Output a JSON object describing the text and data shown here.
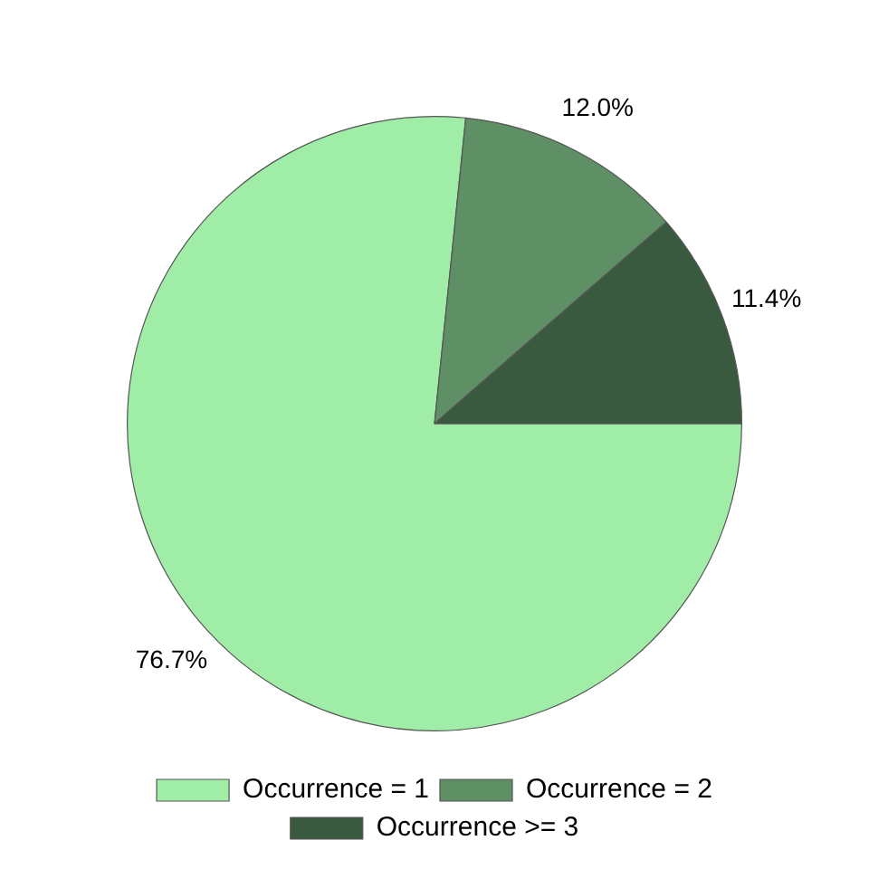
{
  "chart_data": {
    "type": "pie",
    "categories": [
      "Occurrence = 1",
      "Occurrence = 2",
      "Occurrence >= 3"
    ],
    "values": [
      76.7,
      12.0,
      11.4
    ],
    "colors": [
      "#a0eda8",
      "#5e8f65",
      "#3a5a40"
    ],
    "value_labels": [
      "76.7%",
      "12.0%",
      "11.4%"
    ],
    "legend": "bottom"
  }
}
